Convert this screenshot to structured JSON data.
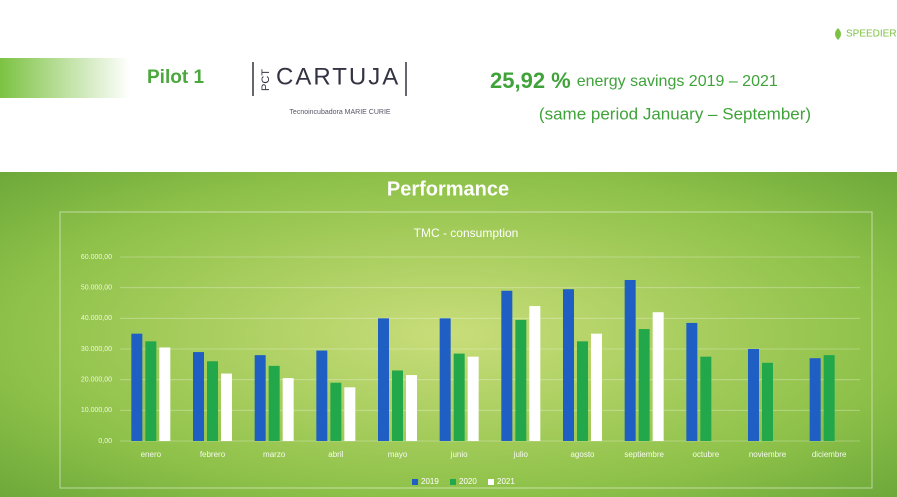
{
  "header": {
    "brand": "SPEEDIER",
    "pilot": "Pilot 1",
    "logo_prefix": "PCT",
    "logo_name": "CARTUJA",
    "logo_subtitle": "Tecnoincubadora MARIE CURIE",
    "savings_value": "25,92 %",
    "savings_text": "energy savings 2019 – 2021",
    "period": "(same period January – September)",
    "section_title": "Performance"
  },
  "chart_data": {
    "type": "bar",
    "title": "TMC - consumption",
    "categories": [
      "enero",
      "febrero",
      "marzo",
      "abril",
      "mayo",
      "junio",
      "julio",
      "agosto",
      "septiembre",
      "octubre",
      "noviembre",
      "diciembre"
    ],
    "series": [
      {
        "name": "2019",
        "color": "#1f5fc4",
        "values": [
          35000,
          29000,
          28000,
          29500,
          40000,
          40000,
          49000,
          49500,
          52500,
          38500,
          30000,
          27000
        ]
      },
      {
        "name": "2020",
        "color": "#22a84a",
        "values": [
          32500,
          26000,
          24500,
          19000,
          23000,
          28500,
          39500,
          32500,
          36500,
          27500,
          25500,
          28000
        ]
      },
      {
        "name": "2021",
        "color": "#ffffff",
        "values": [
          30500,
          22000,
          20500,
          17500,
          21500,
          27500,
          44000,
          35000,
          42000,
          null,
          null,
          null
        ]
      }
    ],
    "ylim": [
      0,
      60000
    ],
    "yticks": [
      {
        "value": 0,
        "label": "0,00"
      },
      {
        "value": 10000,
        "label": "10.000,00"
      },
      {
        "value": 20000,
        "label": "20.000,00"
      },
      {
        "value": 30000,
        "label": "30.000,00"
      },
      {
        "value": 40000,
        "label": "40.000,00"
      },
      {
        "value": 50000,
        "label": "50.000,00"
      },
      {
        "value": 60000,
        "label": "60.000,00"
      }
    ],
    "grid": true,
    "legend": "bottom"
  }
}
